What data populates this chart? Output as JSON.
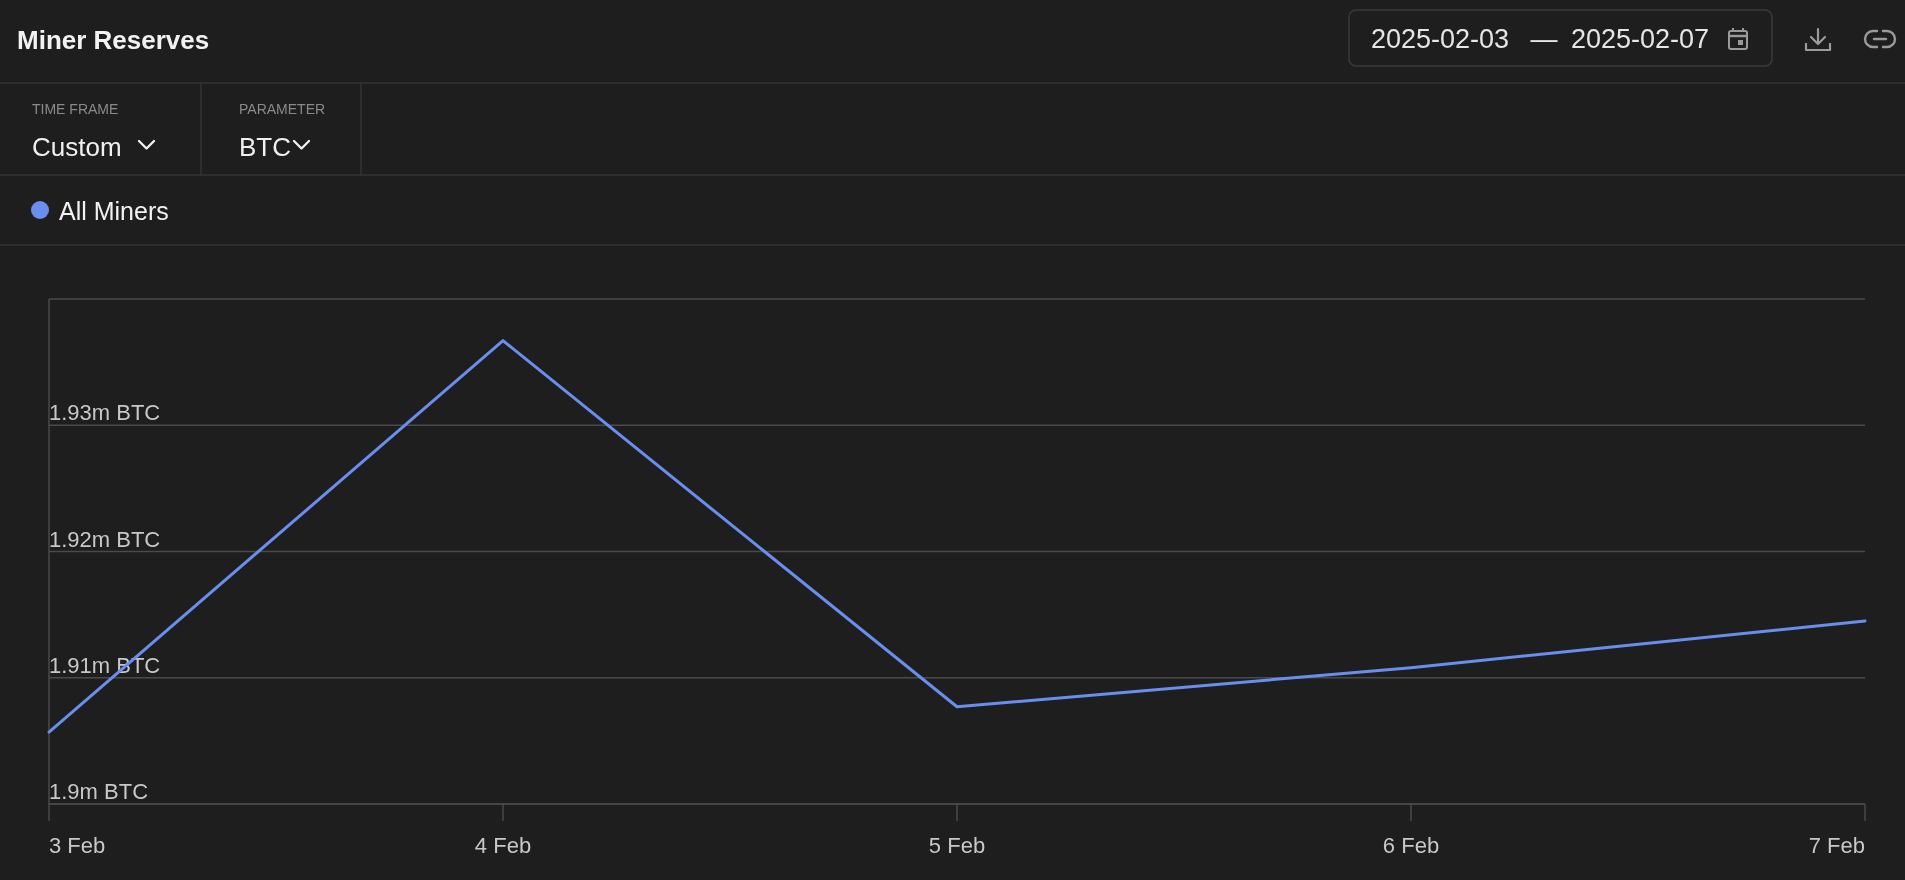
{
  "chart_data": {
    "type": "line",
    "title": "Miner Reserves",
    "annotations": [
      "2025-02-03",
      "—",
      "2025-02-07",
      "TIME FRAME",
      "Custom",
      "PARAMETER",
      "BTC"
    ],
    "x": [
      "2025-02-03",
      "2025-02-04",
      "2025-02-05",
      "2025-02-06",
      "2025-02-07"
    ],
    "xlim": [
      "2025-02-03",
      "2025-02-07"
    ],
    "xticks": [
      {
        "value": "2025-02-03",
        "label": "3 Feb"
      },
      {
        "value": "2025-02-04",
        "label": "4 Feb"
      },
      {
        "value": "2025-02-05",
        "label": "5 Feb"
      },
      {
        "value": "2025-02-06",
        "label": "6 Feb"
      },
      {
        "value": "2025-02-07",
        "label": "7 Feb"
      }
    ],
    "ylim": [
      1.9,
      1.94
    ],
    "yticks": [
      {
        "value": 1.9,
        "label": "1.9m BTC"
      },
      {
        "value": 1.91,
        "label": "1.91m BTC"
      },
      {
        "value": 1.92,
        "label": "1.92m BTC"
      },
      {
        "value": 1.93,
        "label": "1.93m BTC"
      },
      {
        "value": 1.94,
        "label": null
      }
    ],
    "series": [
      {
        "name": "All Miners",
        "color": "#6a8ef0",
        "values": [
          1.9057,
          1.9367,
          1.9077,
          1.9108,
          1.9145
        ]
      }
    ],
    "grid": "y",
    "legend": "top left"
  }
}
